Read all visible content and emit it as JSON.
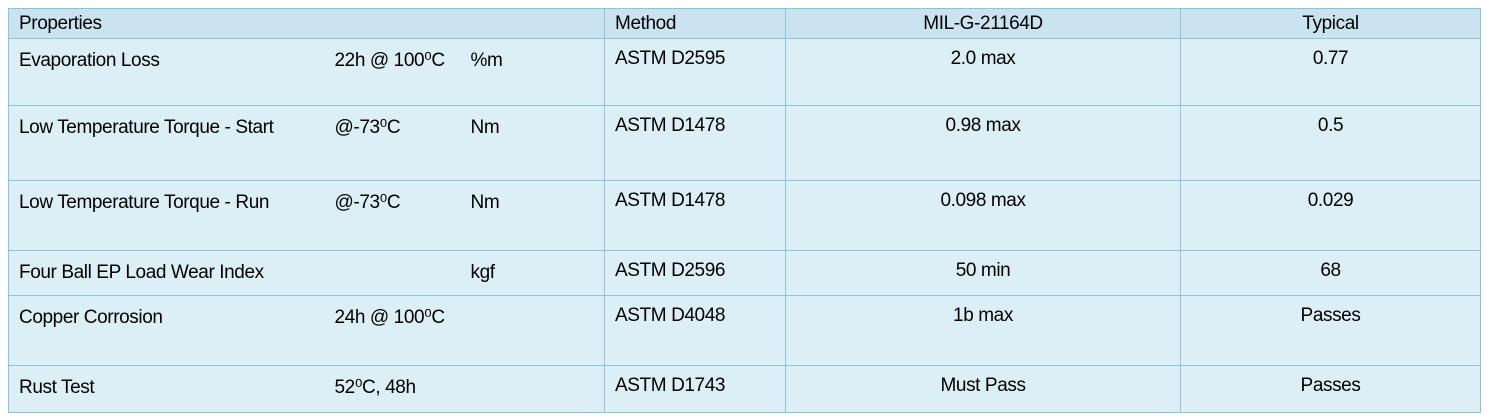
{
  "table": {
    "header": [
      "Properties",
      "Method",
      "MIL-G-21164D",
      "Typical"
    ],
    "rows": [
      {
        "property": "Evaporation Loss",
        "condition": "22h @ 100⁰C",
        "unit": "%m",
        "method": "ASTM D2595",
        "spec": "2.0 max",
        "typical": "0.77"
      },
      {
        "property": "Low Temperature Torque - Start",
        "condition": "@-73⁰C",
        "unit": "Nm",
        "method": "ASTM D1478",
        "spec": "0.98 max",
        "typical": "0.5"
      },
      {
        "property": "Low Temperature Torque - Run",
        "condition": "@-73⁰C",
        "unit": "Nm",
        "method": "ASTM D1478",
        "spec": "0.098 max",
        "typical": "0.029"
      },
      {
        "property": "Four Ball EP Load Wear Index",
        "unit": "kgf",
        "method": "ASTM D2596",
        "spec": "50 min",
        "typical": "68"
      },
      {
        "property": "Copper Corrosion",
        "condition": "24h @ 100⁰C",
        "method": "ASTM D4048",
        "spec": "1b max",
        "typical": "Passes"
      },
      {
        "property": "Rust Test",
        "condition": "52⁰C, 48h",
        "method": "ASTM D1743",
        "spec": "Must Pass",
        "typical": "Passes"
      }
    ]
  }
}
